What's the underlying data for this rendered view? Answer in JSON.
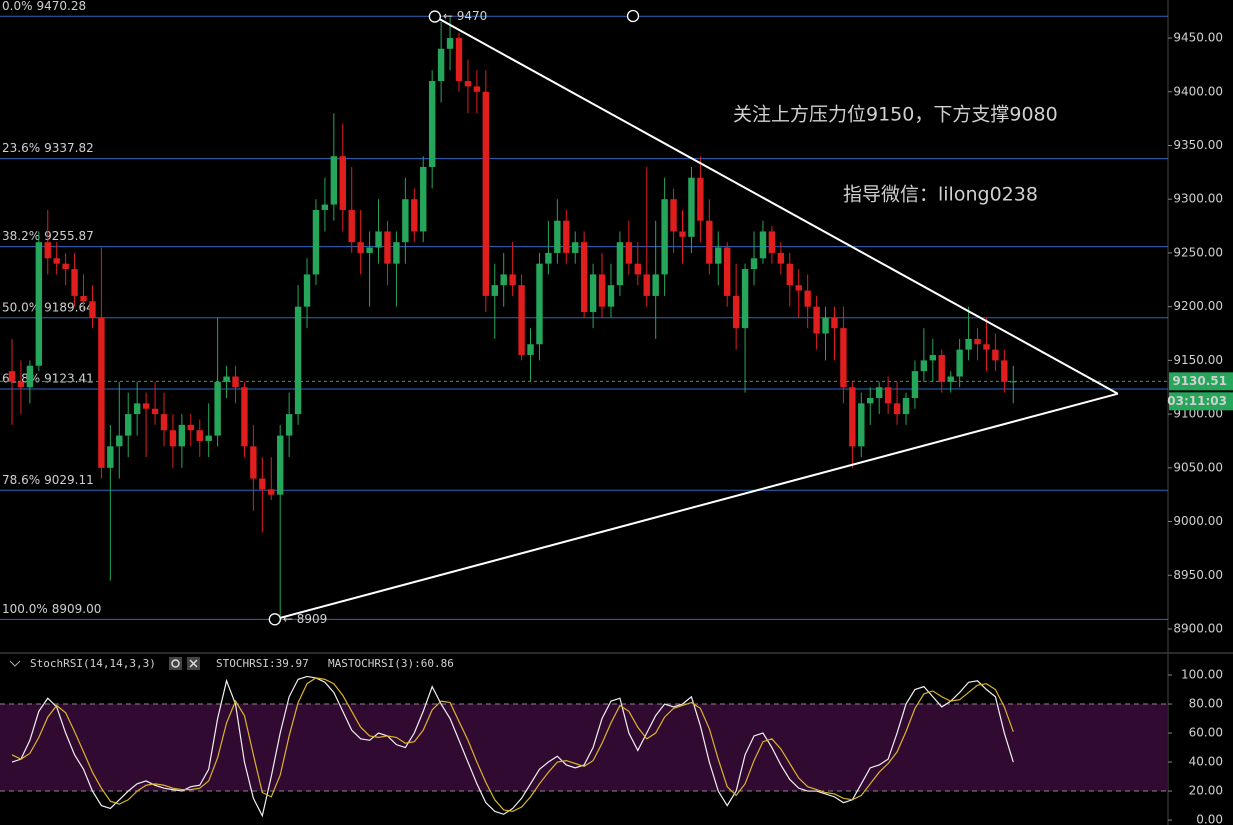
{
  "chart_data": [
    {
      "type": "candlestick",
      "up_color": "#26a65b",
      "down_color": "#e01e1e",
      "ylim": [
        8878.6,
        9485.4
      ],
      "yticks": [
        {
          "value": 8900,
          "label": "8900.00"
        },
        {
          "value": 8950,
          "label": "8950.00"
        },
        {
          "value": 9000,
          "label": "9000.00"
        },
        {
          "value": 9050,
          "label": "9050.00"
        },
        {
          "value": 9100,
          "label": "9100.00"
        },
        {
          "value": 9150,
          "label": "9150.00"
        },
        {
          "value": 9200,
          "label": "9200.00"
        },
        {
          "value": 9250,
          "label": "9250.00"
        },
        {
          "value": 9300,
          "label": "9300.00"
        },
        {
          "value": 9350,
          "label": "9350.00"
        },
        {
          "value": 9400,
          "label": "9400.00"
        },
        {
          "value": 9450,
          "label": "9450.00"
        }
      ],
      "ohlc": [
        [
          9140,
          9170,
          9090,
          9130
        ],
        [
          9130,
          9150,
          9100,
          9125
        ],
        [
          9125,
          9150,
          9110,
          9145
        ],
        [
          9145,
          9270,
          9140,
          9260
        ],
        [
          9260,
          9290,
          9230,
          9245
        ],
        [
          9245,
          9260,
          9230,
          9240
        ],
        [
          9240,
          9250,
          9220,
          9235
        ],
        [
          9235,
          9250,
          9200,
          9210
        ],
        [
          9210,
          9230,
          9195,
          9205
        ],
        [
          9205,
          9220,
          9180,
          9190
        ],
        [
          9190,
          9255,
          9040,
          9050
        ],
        [
          9050,
          9090,
          8945,
          9070
        ],
        [
          9070,
          9130,
          9040,
          9080
        ],
        [
          9080,
          9120,
          9060,
          9100
        ],
        [
          9100,
          9130,
          9080,
          9110
        ],
        [
          9110,
          9120,
          9060,
          9105
        ],
        [
          9105,
          9130,
          9090,
          9100
        ],
        [
          9100,
          9120,
          9070,
          9085
        ],
        [
          9085,
          9100,
          9050,
          9070
        ],
        [
          9070,
          9100,
          9050,
          9090
        ],
        [
          9090,
          9100,
          9070,
          9085
        ],
        [
          9085,
          9095,
          9060,
          9075
        ],
        [
          9075,
          9110,
          9060,
          9080
        ],
        [
          9080,
          9190,
          9070,
          9130
        ],
        [
          9130,
          9145,
          9115,
          9135
        ],
        [
          9135,
          9145,
          9110,
          9125
        ],
        [
          9125,
          9130,
          9060,
          9070
        ],
        [
          9070,
          9090,
          9010,
          9040
        ],
        [
          9040,
          9060,
          8990,
          9030
        ],
        [
          9030,
          9060,
          9020,
          9025
        ],
        [
          9025,
          9090,
          8909,
          9080
        ],
        [
          9080,
          9120,
          9060,
          9100
        ],
        [
          9100,
          9220,
          9090,
          9200
        ],
        [
          9200,
          9245,
          9180,
          9230
        ],
        [
          9230,
          9300,
          9220,
          9290
        ],
        [
          9290,
          9320,
          9270,
          9295
        ],
        [
          9295,
          9380,
          9280,
          9340
        ],
        [
          9340,
          9370,
          9270,
          9290
        ],
        [
          9290,
          9330,
          9250,
          9260
        ],
        [
          9260,
          9290,
          9230,
          9250
        ],
        [
          9250,
          9270,
          9200,
          9255
        ],
        [
          9255,
          9300,
          9240,
          9270
        ],
        [
          9270,
          9280,
          9220,
          9240
        ],
        [
          9240,
          9270,
          9200,
          9260
        ],
        [
          9260,
          9320,
          9240,
          9300
        ],
        [
          9300,
          9310,
          9260,
          9270
        ],
        [
          9270,
          9340,
          9260,
          9330
        ],
        [
          9330,
          9420,
          9310,
          9410
        ],
        [
          9410,
          9465,
          9390,
          9440
        ],
        [
          9440,
          9470,
          9420,
          9450
        ],
        [
          9450,
          9455,
          9400,
          9410
        ],
        [
          9410,
          9430,
          9380,
          9405
        ],
        [
          9405,
          9420,
          9380,
          9400
        ],
        [
          9400,
          9420,
          9195,
          9210
        ],
        [
          9210,
          9240,
          9170,
          9220
        ],
        [
          9220,
          9250,
          9200,
          9230
        ],
        [
          9230,
          9260,
          9210,
          9220
        ],
        [
          9220,
          9230,
          9150,
          9155
        ],
        [
          9155,
          9180,
          9130,
          9165
        ],
        [
          9165,
          9250,
          9150,
          9240
        ],
        [
          9240,
          9280,
          9230,
          9250
        ],
        [
          9250,
          9300,
          9240,
          9280
        ],
        [
          9280,
          9290,
          9240,
          9250
        ],
        [
          9250,
          9270,
          9240,
          9260
        ],
        [
          9260,
          9270,
          9190,
          9195
        ],
        [
          9195,
          9240,
          9180,
          9230
        ],
        [
          9230,
          9250,
          9190,
          9200
        ],
        [
          9200,
          9240,
          9190,
          9220
        ],
        [
          9220,
          9270,
          9210,
          9260
        ],
        [
          9260,
          9280,
          9230,
          9240
        ],
        [
          9240,
          9260,
          9220,
          9230
        ],
        [
          9230,
          9330,
          9200,
          9210
        ],
        [
          9210,
          9280,
          9170,
          9230
        ],
        [
          9230,
          9320,
          9210,
          9300
        ],
        [
          9300,
          9310,
          9250,
          9270
        ],
        [
          9270,
          9290,
          9240,
          9265
        ],
        [
          9265,
          9330,
          9250,
          9320
        ],
        [
          9320,
          9340,
          9260,
          9280
        ],
        [
          9280,
          9300,
          9230,
          9240
        ],
        [
          9240,
          9270,
          9220,
          9255
        ],
        [
          9255,
          9260,
          9200,
          9210
        ],
        [
          9210,
          9240,
          9160,
          9180
        ],
        [
          9180,
          9240,
          9120,
          9235
        ],
        [
          9235,
          9270,
          9220,
          9245
        ],
        [
          9245,
          9280,
          9240,
          9270
        ],
        [
          9270,
          9275,
          9240,
          9250
        ],
        [
          9250,
          9260,
          9230,
          9240
        ],
        [
          9240,
          9250,
          9200,
          9220
        ],
        [
          9220,
          9235,
          9190,
          9215
        ],
        [
          9215,
          9230,
          9180,
          9200
        ],
        [
          9200,
          9210,
          9160,
          9175
        ],
        [
          9175,
          9200,
          9150,
          9190
        ],
        [
          9190,
          9200,
          9150,
          9180
        ],
        [
          9180,
          9200,
          9110,
          9125
        ],
        [
          9125,
          9130,
          9050,
          9070
        ],
        [
          9070,
          9120,
          9060,
          9110
        ],
        [
          9110,
          9125,
          9090,
          9115
        ],
        [
          9115,
          9130,
          9100,
          9125
        ],
        [
          9125,
          9135,
          9100,
          9110
        ],
        [
          9110,
          9130,
          9090,
          9100
        ],
        [
          9100,
          9120,
          9090,
          9115
        ],
        [
          9115,
          9150,
          9105,
          9140
        ],
        [
          9140,
          9180,
          9130,
          9150
        ],
        [
          9150,
          9170,
          9130,
          9155
        ],
        [
          9155,
          9160,
          9120,
          9130
        ],
        [
          9130,
          9140,
          9120,
          9135
        ],
        [
          9135,
          9170,
          9125,
          9160
        ],
        [
          9160,
          9200,
          9150,
          9170
        ],
        [
          9170,
          9180,
          9150,
          9165
        ],
        [
          9165,
          9190,
          9140,
          9160
        ],
        [
          9160,
          9175,
          9140,
          9150
        ],
        [
          9150,
          9160,
          9120,
          9130
        ],
        [
          9130,
          9145,
          9110,
          9130.51
        ]
      ],
      "fib_color": "#3d8bff",
      "fib_levels": [
        {
          "ratio": "0.0%",
          "price": 9470.28
        },
        {
          "ratio": "23.6%",
          "price": 9337.82
        },
        {
          "ratio": "38.2%",
          "price": 9255.87
        },
        {
          "ratio": "50.0%",
          "price": 9189.64
        },
        {
          "ratio": "61.8%",
          "price": 9123.41
        },
        {
          "ratio": "78.6%",
          "price": 9029.11
        },
        {
          "ratio": "100.0%",
          "price": {
            "value": 8909,
            "label": "8909.00"
          }
        }
      ],
      "triangle": {
        "color": "#ffffff",
        "upper": {
          "x": [
            47.3,
            123.7
          ],
          "y": [
            9470,
            9119
          ]
        },
        "lower": {
          "x": [
            29.4,
            123.7
          ],
          "y": [
            8909,
            9119
          ]
        }
      },
      "pivot_labels": [
        "← 9470",
        "← 8909"
      ],
      "current_price": 9130.51,
      "current_color": "#26a65b",
      "countdown": "03:11:03",
      "annotations": [
        "关注上方压力位9150，下方支撑9080",
        "指导微信：lilong0238"
      ],
      "annotation_color": "#e52020"
    },
    {
      "type": "line",
      "title": "StochRSI(14,14,3,3)",
      "legend": [
        "STOCHRSI:39.97",
        "MASTOCHRSI(3):60.86"
      ],
      "ylim": [
        -3.4,
        113.8
      ],
      "yticks": [
        {
          "value": 0,
          "label": "0.00"
        },
        {
          "value": 20,
          "label": "20.00"
        },
        {
          "value": 40,
          "label": "40.00"
        },
        {
          "value": 60,
          "label": "60.00"
        },
        {
          "value": 80,
          "label": "80.00"
        },
        {
          "value": 100,
          "label": "100.00"
        }
      ],
      "band": [
        20,
        80
      ],
      "band_color": "#3a0c3a",
      "series": [
        {
          "color": "#f0f0f0",
          "values": [
            40,
            42,
            55,
            75,
            84,
            78,
            60,
            45,
            35,
            20,
            10,
            8,
            14,
            20,
            25,
            27,
            24,
            22,
            21,
            20,
            23,
            24,
            35,
            70,
            96,
            80,
            40,
            15,
            3,
            30,
            60,
            85,
            97,
            99,
            98,
            95,
            88,
            75,
            62,
            56,
            55,
            60,
            58,
            52,
            50,
            60,
            75,
            92,
            80,
            70,
            55,
            40,
            25,
            12,
            6,
            4,
            8,
            15,
            25,
            35,
            40,
            44,
            38,
            36,
            38,
            50,
            70,
            82,
            84,
            60,
            48,
            60,
            72,
            80,
            78,
            80,
            85,
            65,
            40,
            20,
            10,
            20,
            45,
            58,
            60,
            50,
            38,
            28,
            22,
            20,
            20,
            18,
            16,
            12,
            14,
            25,
            36,
            38,
            42,
            60,
            80,
            90,
            92,
            85,
            78,
            82,
            88,
            95,
            96,
            90,
            85,
            60,
            39.97
          ]
        },
        {
          "color": "#d9b42a",
          "values": [
            45,
            42,
            46,
            57,
            71,
            79,
            74,
            61,
            47,
            33,
            22,
            13,
            11,
            14,
            20,
            24,
            25,
            24,
            22,
            21,
            21,
            22,
            27,
            43,
            67,
            82,
            72,
            45,
            19,
            16,
            31,
            58,
            81,
            94,
            98,
            97,
            94,
            86,
            75,
            64,
            58,
            57,
            58,
            57,
            53,
            54,
            62,
            76,
            82,
            81,
            68,
            55,
            40,
            26,
            14,
            7,
            6,
            9,
            16,
            25,
            33,
            40,
            41,
            39,
            37,
            41,
            53,
            67,
            79,
            75,
            64,
            56,
            60,
            71,
            77,
            79,
            81,
            77,
            63,
            42,
            23,
            17,
            25,
            41,
            54,
            56,
            49,
            39,
            29,
            23,
            21,
            19,
            18,
            15,
            14,
            17,
            25,
            33,
            39,
            47,
            61,
            77,
            87,
            89,
            85,
            82,
            83,
            88,
            93,
            94,
            90,
            78,
            60.86
          ]
        }
      ]
    }
  ]
}
